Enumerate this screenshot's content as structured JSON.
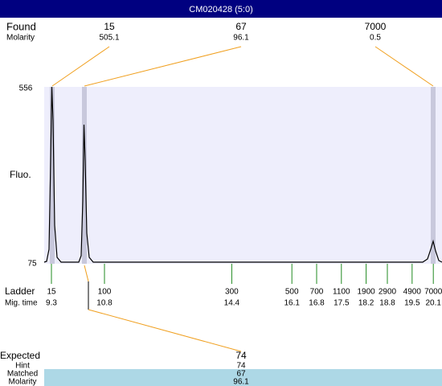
{
  "header": {
    "title": "CM020428 (5:0)"
  },
  "found": {
    "label": "Found",
    "sublabel": "Molarity",
    "peaks": [
      {
        "size": 15,
        "molarity": 505.1
      },
      {
        "size": 67,
        "molarity": 96.1
      },
      {
        "size": 7000,
        "molarity": 0.5
      }
    ]
  },
  "axis": {
    "label": "Fluo.",
    "max": 556,
    "min": 75
  },
  "ladder": {
    "label": "Ladder",
    "sublabel": "Mig. time",
    "items": [
      {
        "size": 15,
        "time": 9.3
      },
      {
        "size": 100,
        "time": 10.8
      },
      {
        "size": 300,
        "time": 14.4
      },
      {
        "size": 500,
        "time": 16.1
      },
      {
        "size": 700,
        "time": 16.8
      },
      {
        "size": 1100,
        "time": 17.5
      },
      {
        "size": 1900,
        "time": 18.2
      },
      {
        "size": 2900,
        "time": 18.8
      },
      {
        "size": 4900,
        "time": 19.5
      },
      {
        "size": 7000,
        "time": 20.1
      }
    ]
  },
  "expected": {
    "label": "Expected",
    "value": 74,
    "hint_label": "Hint",
    "hint": 74,
    "matched_label": "Matched",
    "matched": 67,
    "molarity_label": "Molarity",
    "molarity": 96.1
  }
}
